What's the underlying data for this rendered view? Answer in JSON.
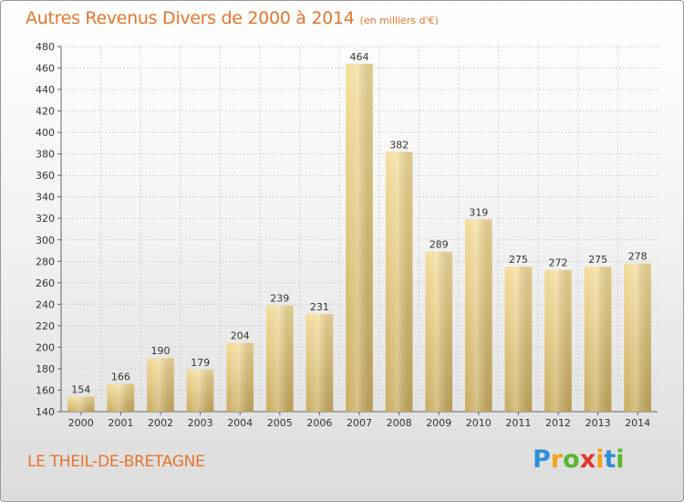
{
  "title": "Autres Revenus Divers de 2000 à 2014",
  "unit_note": "(en milliers d'€)",
  "place": "LE THEIL-DE-BRETAGNE",
  "logo": {
    "letters": [
      "P",
      "r",
      "o",
      "x",
      "i",
      "t",
      "i"
    ],
    "colors": [
      "#2e8fd8",
      "#f2a21b",
      "#5cb531",
      "#e2352b",
      "#f2a21b",
      "#2e8fd8",
      "#5cb531"
    ]
  },
  "chart_data": {
    "type": "bar",
    "categories": [
      "2000",
      "2001",
      "2002",
      "2003",
      "2004",
      "2005",
      "2006",
      "2007",
      "2008",
      "2009",
      "2010",
      "2011",
      "2012",
      "2013",
      "2014"
    ],
    "values": [
      154,
      166,
      190,
      179,
      204,
      239,
      231,
      464,
      382,
      289,
      319,
      275,
      272,
      275,
      278
    ],
    "ylim": [
      140,
      480
    ],
    "yticks": [
      140,
      160,
      180,
      200,
      220,
      240,
      260,
      280,
      300,
      320,
      340,
      360,
      380,
      400,
      420,
      440,
      460,
      480
    ],
    "grid": true,
    "bar_color": "#e9cc7e"
  }
}
